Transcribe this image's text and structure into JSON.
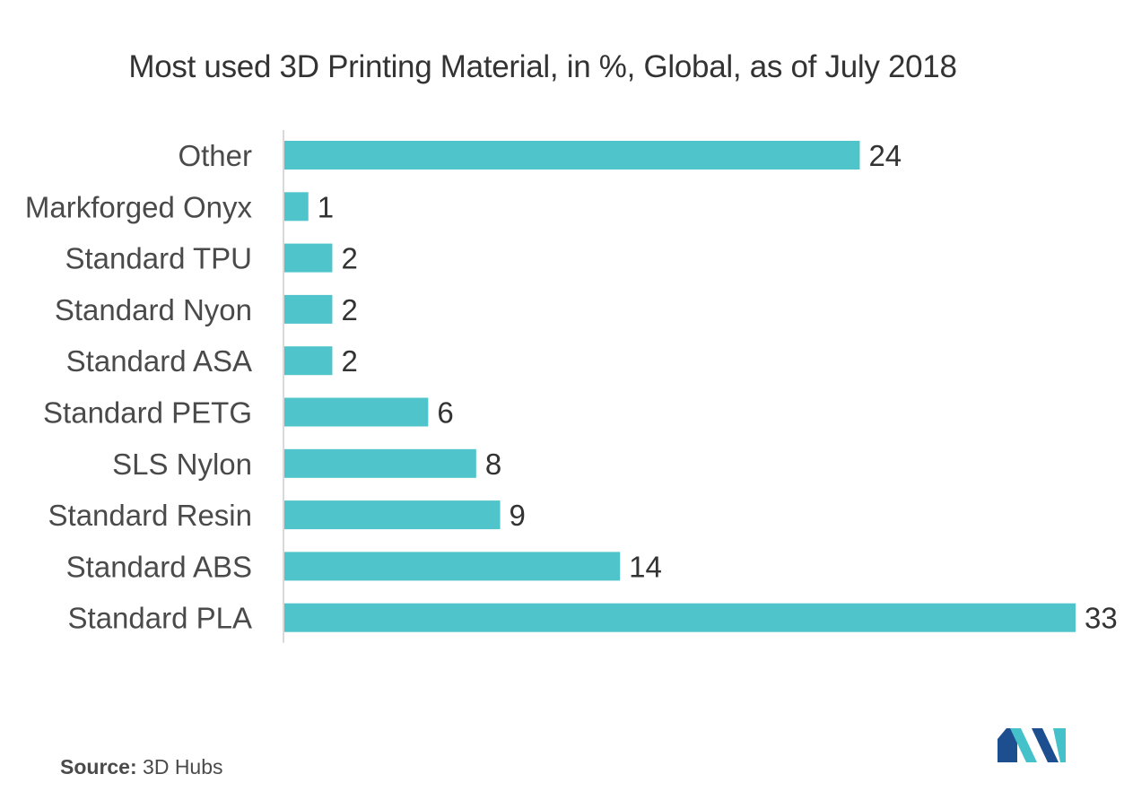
{
  "chart_data": {
    "type": "bar",
    "orientation": "horizontal",
    "title": "Most used 3D Printing Material, in %, Global, as of July 2018",
    "categories": [
      "Other",
      "Markforged Onyx",
      "Standard TPU",
      "Standard Nyon",
      "Standard ASA",
      "Standard PETG",
      "SLS Nylon",
      "Standard Resin",
      "Standard ABS",
      "Standard PLA"
    ],
    "values": [
      24,
      1,
      2,
      2,
      2,
      6,
      8,
      9,
      14,
      33
    ],
    "value_labels": [
      "24",
      "1",
      "2",
      "2",
      "2",
      "6",
      "8",
      "9",
      "14",
      "33"
    ],
    "xlabel": "",
    "ylabel": "",
    "xlim": [
      0,
      33
    ],
    "grid": false,
    "legend": "none",
    "bar_color": "#4fc4ca",
    "axis_color": "#d9d9d9"
  },
  "source": {
    "label": "Source:",
    "value": "3D Hubs"
  },
  "logo": {
    "name": "mordor-intelligence-logo",
    "colors": [
      "#1d4e8f",
      "#45c2c9"
    ]
  }
}
